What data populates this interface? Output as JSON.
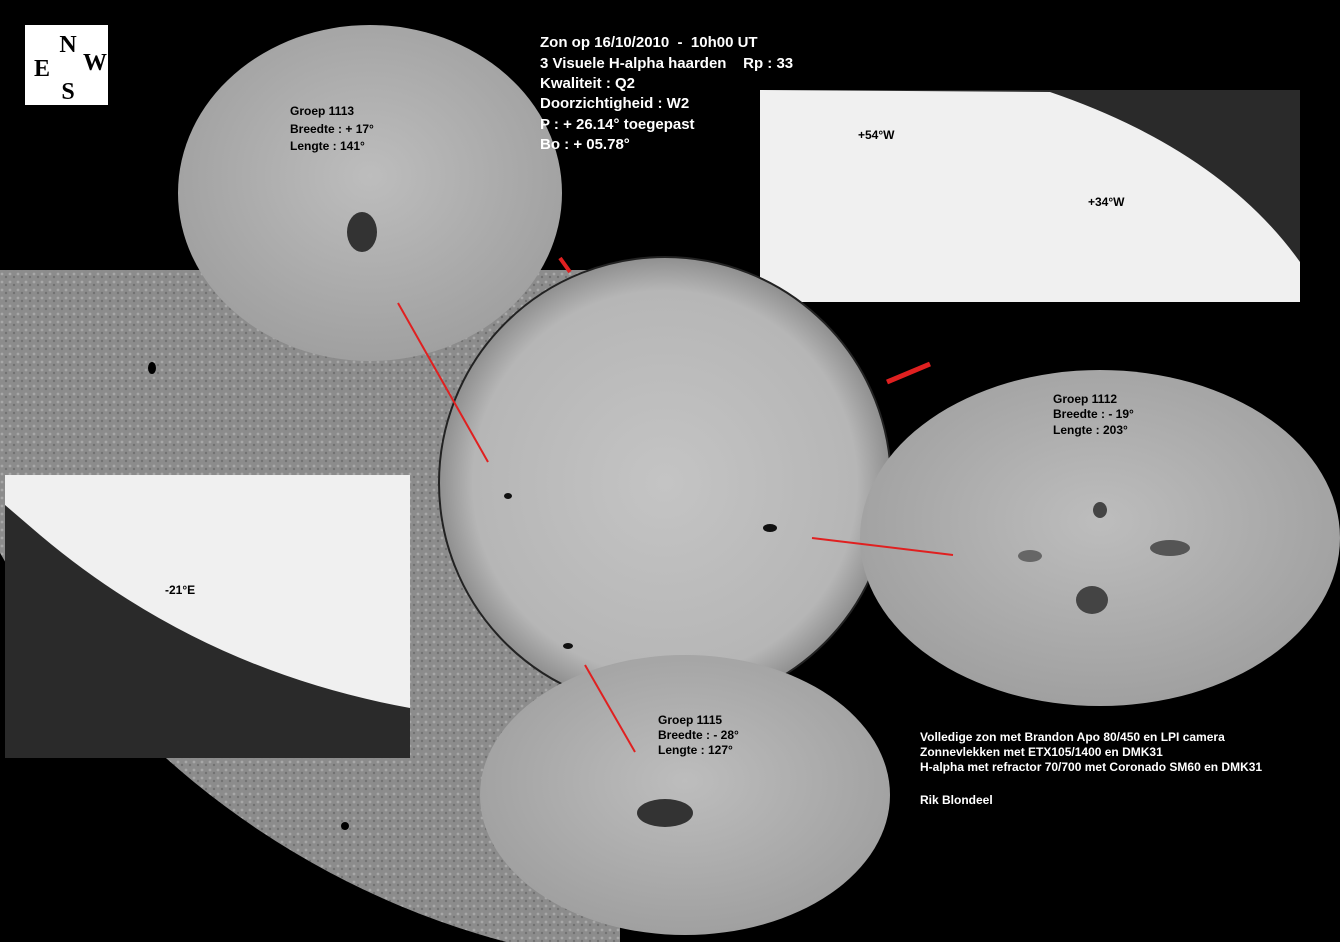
{
  "compass": {
    "n": "N",
    "e": "E",
    "w": "W",
    "s": "S"
  },
  "header": {
    "lines": [
      "Zon op 16/10/2010  -  10h00 UT",
      "3 Visuele H-alpha haarden    Rp : 33",
      "Kwaliteit : Q2",
      "Doorzichtigheid : W2",
      "P : + 26.14° toegepast",
      "Bo : + 05.78°"
    ]
  },
  "groups": [
    {
      "name": "Groep 1113",
      "breedte": "Breedte : + 17°",
      "lengte": "Lengte : 141°"
    },
    {
      "name": "Groep 1112",
      "breedte": "Breedte : - 19°",
      "lengte": "Lengte : 203°"
    },
    {
      "name": "Groep 1115",
      "breedte": "Breedte : - 28°",
      "lengte": "Lengte : 127°"
    }
  ],
  "limb_labels": [
    "+54°W",
    "+34°W",
    "-21°E"
  ],
  "credits": {
    "lines": [
      "Volledige zon met Brandon Apo 80/450 en LPI camera",
      "Zonnevlekken met ETX105/1400 en DMK31",
      "H-alpha met refractor 70/700 met Coronado SM60 en DMK31"
    ],
    "author": "Rik Blondeel"
  }
}
